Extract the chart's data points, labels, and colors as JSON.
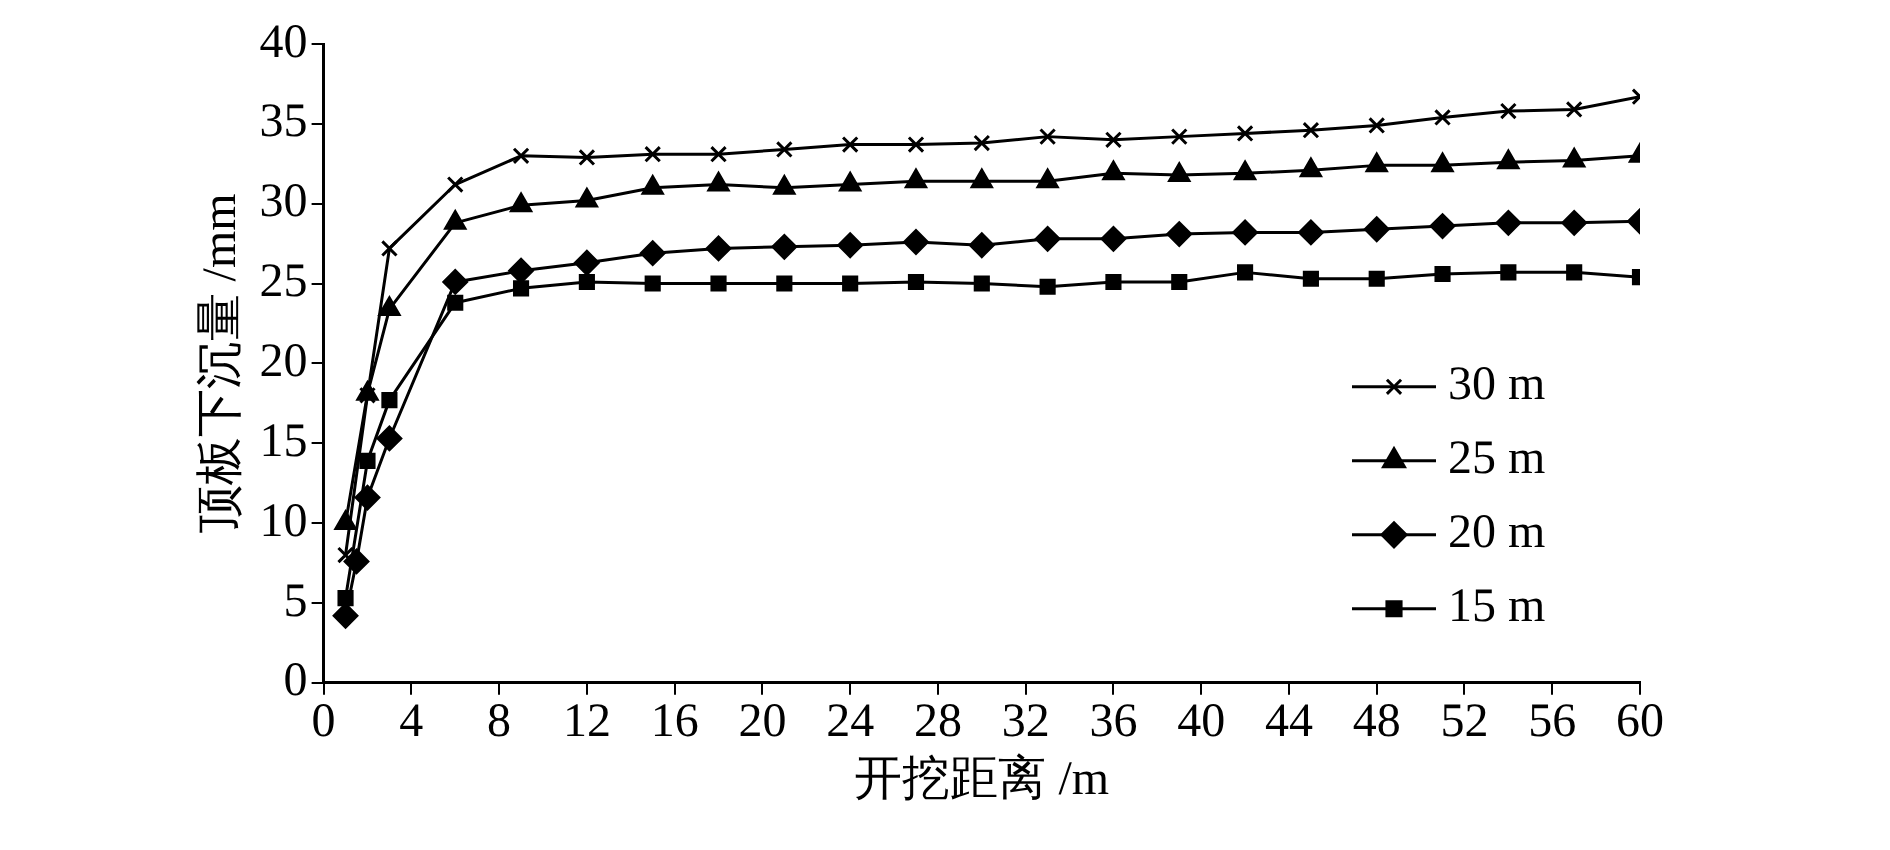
{
  "chart_data": {
    "type": "line",
    "xlabel": "开挖距离 /m",
    "ylabel": "顶板下沉量 /mm",
    "xlim": [
      0,
      60
    ],
    "xticks": [
      0,
      4,
      8,
      12,
      16,
      20,
      24,
      28,
      32,
      36,
      40,
      44,
      48,
      52,
      56,
      60
    ],
    "ylim": [
      0,
      40
    ],
    "yticks": [
      0,
      5,
      10,
      15,
      20,
      25,
      30,
      35,
      40
    ],
    "grid": false,
    "legend": "right",
    "line_style": "solid",
    "series": [
      {
        "name": "30 m",
        "color": "#000000",
        "marker": "cross",
        "x": [
          1,
          2,
          3,
          6,
          9,
          12,
          15,
          18,
          21,
          24,
          27,
          30,
          33,
          36,
          39,
          42,
          45,
          48,
          51,
          54,
          57,
          60
        ],
        "values": [
          8,
          18,
          27.2,
          31.2,
          33,
          32.9,
          33.1,
          33.1,
          33.4,
          33.7,
          33.7,
          33.8,
          34.2,
          34,
          34.2,
          34.4,
          34.6,
          34.9,
          35.4,
          35.8,
          35.9,
          36.7
        ]
      },
      {
        "name": "25 m",
        "color": "#000000",
        "marker": "triangle",
        "x": [
          1,
          2,
          3,
          6,
          9,
          12,
          15,
          18,
          21,
          24,
          27,
          30,
          33,
          36,
          39,
          42,
          45,
          48,
          51,
          54,
          57,
          60
        ],
        "values": [
          10,
          18.1,
          23.4,
          28.8,
          29.9,
          30.2,
          31,
          31.2,
          31,
          31.2,
          31.4,
          31.4,
          31.4,
          31.9,
          31.8,
          31.9,
          32.1,
          32.4,
          32.4,
          32.6,
          32.7,
          33
        ]
      },
      {
        "name": "20 m",
        "color": "#000000",
        "marker": "diamond",
        "x": [
          1,
          1.5,
          2,
          3,
          6,
          9,
          12,
          15,
          18,
          21,
          24,
          27,
          30,
          33,
          36,
          39,
          42,
          45,
          48,
          51,
          54,
          57,
          60
        ],
        "values": [
          4.2,
          7.6,
          11.6,
          15.3,
          25.1,
          25.8,
          26.3,
          26.9,
          27.2,
          27.3,
          27.4,
          27.6,
          27.4,
          27.8,
          27.8,
          28.1,
          28.2,
          28.2,
          28.4,
          28.6,
          28.8,
          28.8,
          28.9
        ]
      },
      {
        "name": "15 m",
        "color": "#000000",
        "marker": "square",
        "x": [
          1,
          2,
          3,
          6,
          9,
          12,
          15,
          18,
          21,
          24,
          27,
          30,
          33,
          36,
          39,
          42,
          45,
          48,
          51,
          54,
          57,
          60
        ],
        "values": [
          5.3,
          13.9,
          17.7,
          23.8,
          24.7,
          25.1,
          25,
          25,
          25,
          25,
          25.1,
          25,
          24.8,
          25.1,
          25.1,
          25.7,
          25.3,
          25.3,
          25.6,
          25.7,
          25.7,
          25.4
        ]
      }
    ]
  }
}
